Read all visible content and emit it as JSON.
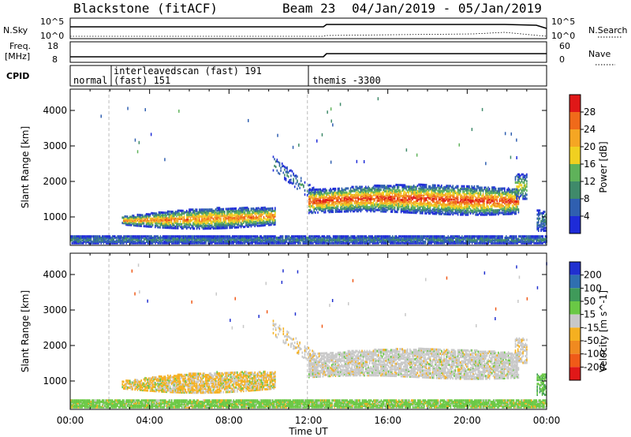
{
  "header": {
    "station": "Blackstone (fitACF)",
    "beam": "Beam 23",
    "date_range": "04/Jan/2019 - 05/Jan/2019"
  },
  "strip_labels": {
    "nsky": "N.Sky",
    "nsky_ticks": [
      "10^5",
      "10^0"
    ],
    "nsearch": "N.Search",
    "freq_line1": "Freq.",
    "freq_line2": "[MHz]",
    "freq_ticks": [
      "18",
      "8"
    ],
    "nave": "Nave",
    "nave_ticks": [
      "60",
      "0"
    ],
    "cpid": "CPID"
  },
  "cpid_segments": [
    {
      "label": "normal",
      "start_h": 0.0
    },
    {
      "label": "interleavedscan (fast) 191",
      "start_h": 1.95
    },
    {
      "label": "(fast) 151",
      "start_h": 1.95
    },
    {
      "label": "themis -3300",
      "start_h": 11.95
    }
  ],
  "chart_data": [
    {
      "type": "heatmap",
      "title": "Power",
      "ylabel": "Slant Range [km]",
      "xlabel": "Time UT",
      "ylim": [
        200,
        4600
      ],
      "xlim_hours": [
        0,
        24
      ],
      "y_ticks": [
        "1000",
        "2000",
        "3000",
        "4000"
      ],
      "x_ticks": [
        "00:00",
        "04:00",
        "08:00",
        "12:00",
        "16:00",
        "20:00",
        "00:00"
      ],
      "colorbar": {
        "label": "Power [dB]",
        "ticks": [
          "4",
          "8",
          "12",
          "16",
          "20",
          "24",
          "28"
        ],
        "colors": [
          "#1e2bd8",
          "#2f5fb0",
          "#3f8a6a",
          "#5fb25a",
          "#f0d020",
          "#f5a623",
          "#f06a1a",
          "#e01818"
        ]
      },
      "regions": [
        {
          "name": "near-range ground band",
          "t": [
            0,
            24
          ],
          "range_km": [
            250,
            450
          ],
          "power_db": 12
        },
        {
          "name": "daytime ionospheric band",
          "t": [
            2.5,
            10.3
          ],
          "range_km": [
            700,
            1250
          ],
          "power_db": 18
        },
        {
          "name": "main echo band",
          "t": [
            12,
            22.5
          ],
          "range_km": [
            1050,
            1800
          ],
          "power_db": 20
        }
      ]
    },
    {
      "type": "heatmap",
      "title": "Velocity",
      "ylabel": "Slant Range [km]",
      "xlabel": "Time UT",
      "ylim": [
        200,
        4600
      ],
      "xlim_hours": [
        0,
        24
      ],
      "y_ticks": [
        "1000",
        "2000",
        "3000",
        "4000"
      ],
      "x_ticks": [
        "00:00",
        "04:00",
        "08:00",
        "12:00",
        "16:00",
        "20:00",
        "00:00"
      ],
      "colorbar": {
        "label": "Velocity [m s^-1]",
        "ticks": [
          "200",
          "100",
          "50",
          "15",
          "-15",
          "-50",
          "-100",
          "-200"
        ],
        "colors": [
          "#2030d0",
          "#2f6fb0",
          "#3f9a5a",
          "#6ac845",
          "#c8c8c8",
          "#f5b020",
          "#f08a20",
          "#f05a18",
          "#e01818"
        ]
      },
      "regions": [
        {
          "name": "near-range ground band",
          "t": [
            0,
            24
          ],
          "range_km": [
            250,
            450
          ],
          "velocity": 20
        },
        {
          "name": "daytime band",
          "t": [
            2.5,
            10.3
          ],
          "range_km": [
            700,
            1250
          ],
          "velocity": -40
        },
        {
          "name": "main echo band",
          "t": [
            12,
            22.5
          ],
          "range_km": [
            1050,
            1800
          ],
          "velocity": 0
        }
      ]
    }
  ]
}
